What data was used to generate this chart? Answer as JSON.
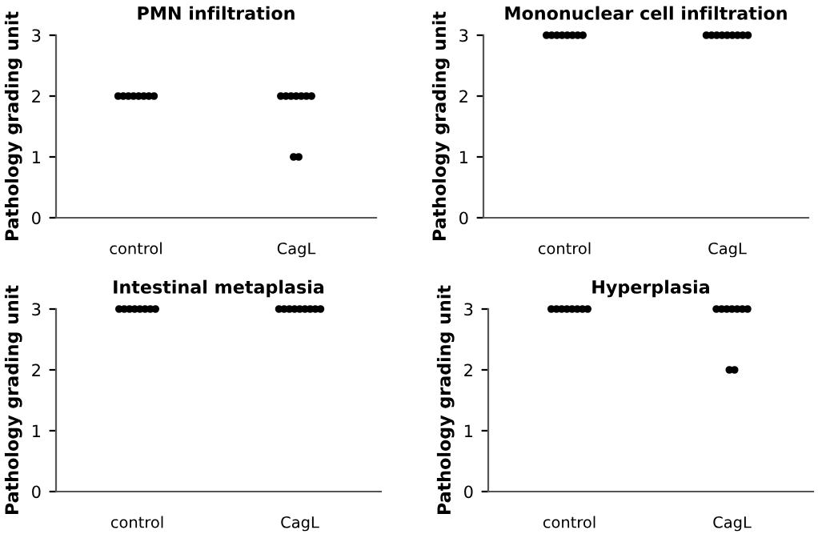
{
  "chart_data": [
    {
      "type": "scatter",
      "title": "PMN infiltration",
      "ylabel": "Pathology grading unit",
      "categories": [
        "control",
        "CagL"
      ],
      "series": [
        {
          "color": "#000000",
          "x": [
            "control",
            "control",
            "control",
            "control",
            "control",
            "control",
            "control",
            "control",
            "CagL",
            "CagL",
            "CagL",
            "CagL",
            "CagL",
            "CagL",
            "CagL",
            "CagL",
            "CagL"
          ],
          "values": [
            2,
            2,
            2,
            2,
            2,
            2,
            2,
            2,
            2,
            2,
            2,
            2,
            2,
            2,
            2,
            1,
            1
          ]
        }
      ],
      "ylim": [
        0,
        3
      ],
      "yticks": [
        0,
        1,
        2,
        3
      ],
      "grid": false,
      "marker": "circle"
    },
    {
      "type": "scatter",
      "title": "Mononuclear cell infiltration",
      "ylabel": "Pathology grading unit",
      "categories": [
        "control",
        "CagL"
      ],
      "series": [
        {
          "color": "#000000",
          "x": [
            "control",
            "control",
            "control",
            "control",
            "control",
            "control",
            "control",
            "control",
            "CagL",
            "CagL",
            "CagL",
            "CagL",
            "CagL",
            "CagL",
            "CagL",
            "CagL",
            "CagL"
          ],
          "values": [
            3,
            3,
            3,
            3,
            3,
            3,
            3,
            3,
            3,
            3,
            3,
            3,
            3,
            3,
            3,
            3,
            3
          ]
        }
      ],
      "ylim": [
        0,
        3
      ],
      "yticks": [
        0,
        1,
        2,
        3
      ],
      "grid": false,
      "marker": "circle"
    },
    {
      "type": "scatter",
      "title": "Intestinal metaplasia",
      "ylabel": "Pathology grading unit",
      "categories": [
        "control",
        "CagL"
      ],
      "series": [
        {
          "color": "#000000",
          "x": [
            "control",
            "control",
            "control",
            "control",
            "control",
            "control",
            "control",
            "control",
            "CagL",
            "CagL",
            "CagL",
            "CagL",
            "CagL",
            "CagL",
            "CagL",
            "CagL",
            "CagL"
          ],
          "values": [
            3,
            3,
            3,
            3,
            3,
            3,
            3,
            3,
            3,
            3,
            3,
            3,
            3,
            3,
            3,
            3,
            3
          ]
        }
      ],
      "ylim": [
        0,
        3
      ],
      "yticks": [
        0,
        1,
        2,
        3
      ],
      "grid": false,
      "marker": "circle"
    },
    {
      "type": "scatter",
      "title": "Hyperplasia",
      "ylabel": "Pathology grading unit",
      "categories": [
        "control",
        "CagL"
      ],
      "series": [
        {
          "color": "#000000",
          "x": [
            "control",
            "control",
            "control",
            "control",
            "control",
            "control",
            "control",
            "control",
            "CagL",
            "CagL",
            "CagL",
            "CagL",
            "CagL",
            "CagL",
            "CagL",
            "CagL",
            "CagL"
          ],
          "values": [
            3,
            3,
            3,
            3,
            3,
            3,
            3,
            3,
            3,
            3,
            3,
            3,
            3,
            3,
            3,
            2,
            2
          ]
        }
      ],
      "ylim": [
        0,
        3
      ],
      "yticks": [
        0,
        1,
        2,
        3
      ],
      "grid": false,
      "marker": "circle"
    }
  ]
}
